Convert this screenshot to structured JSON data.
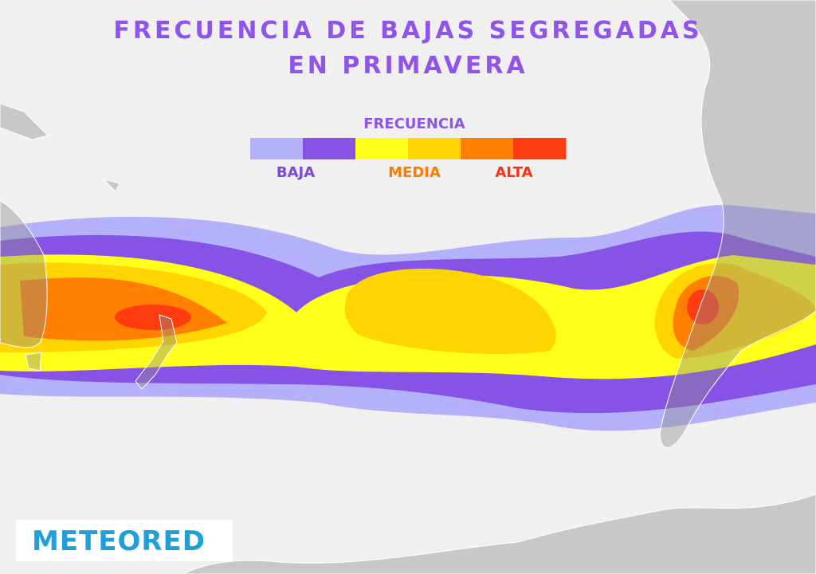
{
  "header": {
    "title_lines": [
      "FRECUENCIA DE BAJAS SEGREGADAS",
      "EN PRIMAVERA"
    ]
  },
  "legend": {
    "title": "FRECUENCIA",
    "labels": [
      "BAJA",
      "MEDIA",
      "ALTA"
    ],
    "colors": [
      "#b4b1fa",
      "#8752e6",
      "#ffff1a",
      "#ffd400",
      "#ff8000",
      "#ff3b10"
    ]
  },
  "footer": {
    "logo": "METEORED"
  }
}
